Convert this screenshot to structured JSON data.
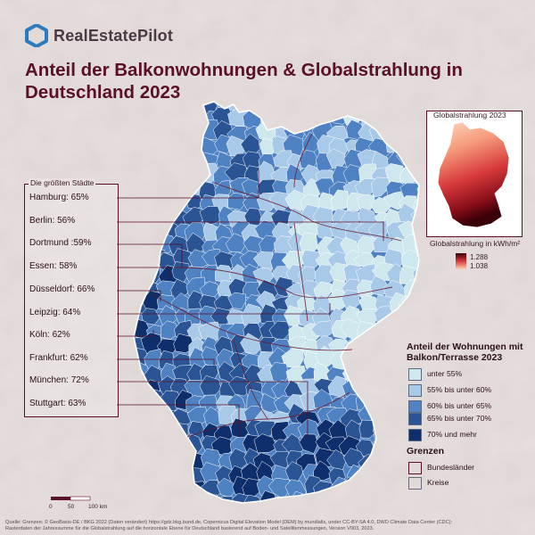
{
  "brand": {
    "name": "RealEstatePilot",
    "logo_icon": "hexagon-logo-icon",
    "color": "#2b7bbf"
  },
  "title": "Anteil der Balkonwohnungen & Globalstrahlung in Deutschland 2023",
  "cities": {
    "title": "Die größten Städte",
    "items": [
      "Hamburg: 65%",
      "Berlin: 56%",
      "Dortmund :59%",
      "Essen: 58%",
      "Düsseldorf: 66%",
      "Leipzig: 64%",
      "Köln: 62%",
      "Frankfurt: 62%",
      "München: 72%",
      "Stuttgart: 63%"
    ]
  },
  "inset": {
    "title": "Globalstrahlung 2023",
    "unit_label": "Globalstrahlung in kWh/m²",
    "max_value": "1.288",
    "min_value": "1.038"
  },
  "legend": {
    "title": "Anteil der Wohnungen mit Balkon/Terrasse 2023",
    "classes": [
      {
        "label": "unter 55%",
        "color": "#cfe8ee"
      },
      {
        "label": "55% bis unter 60%",
        "color": "#a9c9e8"
      },
      {
        "label": "60% bis unter 65%",
        "color": "#4f82c2"
      },
      {
        "label": "65% bis unter 70%",
        "color": "#2a5494"
      },
      {
        "label": "70% und mehr",
        "color": "#0e2f6b"
      }
    ],
    "borders_title": "Grenzen",
    "borders": [
      "Bundesländer",
      "Kreise"
    ]
  },
  "scale": {
    "ticks": [
      "0",
      "50",
      "100 km"
    ]
  },
  "source_lines": [
    "Quelle: Grenzen: © GeoBasis-DE / BKG 2022 (Daten verändert) https://gdz.bkg.bund.de, Copernicus Digital Elevation Model (DEM) by mundialis, under CC-BY-SA 4.0, DWD Climate Data Center (CDC):",
    "Rasterdaten der Jahressumme für die Globalstrahlung auf die horizontale Ebene für Deutschland basierend auf Boden- und Satellitenmessungen, Version V003, 2023."
  ]
}
